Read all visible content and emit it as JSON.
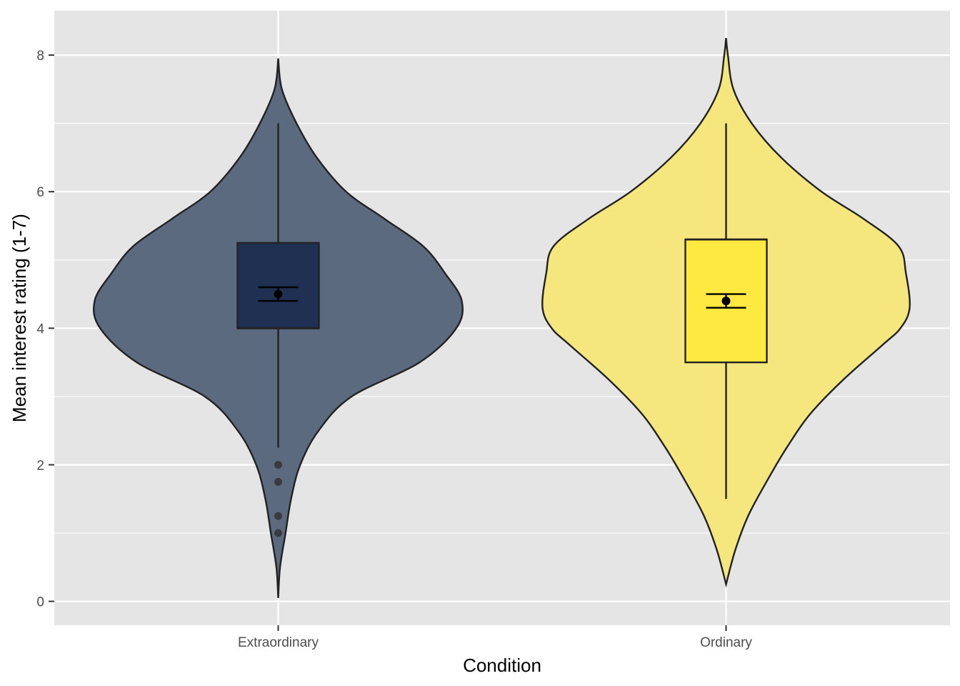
{
  "chart_data": {
    "type": "violin",
    "title": "",
    "xlabel": "Condition",
    "ylabel": "Mean interest rating (1-7)",
    "ylim": [
      -0.35,
      8.65
    ],
    "y_ticks": [
      0,
      2,
      4,
      6,
      8
    ],
    "grid": true,
    "legend": "none",
    "background": "#e5e5e5",
    "categories": [
      "Extraordinary",
      "Ordinary"
    ],
    "groups": [
      {
        "category": "Extraordinary",
        "fill": "#1f3052",
        "violin_fill": "#5c6a80",
        "box_fill": "#1f3052",
        "violin_range": [
          0.05,
          7.95
        ],
        "violin_profile": [
          [
            0.05,
            0.0
          ],
          [
            0.5,
            0.01
          ],
          [
            1.0,
            0.04
          ],
          [
            1.5,
            0.07
          ],
          [
            2.0,
            0.12
          ],
          [
            2.5,
            0.22
          ],
          [
            3.0,
            0.4
          ],
          [
            3.5,
            0.77
          ],
          [
            4.0,
            0.97
          ],
          [
            4.4,
            1.0
          ],
          [
            4.8,
            0.91
          ],
          [
            5.2,
            0.79
          ],
          [
            5.6,
            0.58
          ],
          [
            6.0,
            0.37
          ],
          [
            6.5,
            0.21
          ],
          [
            7.0,
            0.1
          ],
          [
            7.5,
            0.02
          ],
          [
            7.95,
            0.0
          ]
        ],
        "box": {
          "q1": 4.0,
          "median": 4.0,
          "q3": 5.25,
          "whisker_low": 2.25,
          "whisker_high": 7.0
        },
        "outliers": [
          2.0,
          1.75,
          1.25,
          1.0
        ],
        "mean": 4.5,
        "ci": [
          4.4,
          4.6
        ]
      },
      {
        "category": "Ordinary",
        "fill": "#fde725",
        "violin_fill": "#f5e67e",
        "box_fill": "#fde93f",
        "violin_range": [
          0.25,
          8.25
        ],
        "violin_profile": [
          [
            0.25,
            0.0
          ],
          [
            0.75,
            0.05
          ],
          [
            1.25,
            0.12
          ],
          [
            1.75,
            0.22
          ],
          [
            2.25,
            0.33
          ],
          [
            2.75,
            0.46
          ],
          [
            3.25,
            0.64
          ],
          [
            3.75,
            0.85
          ],
          [
            4.0,
            0.95
          ],
          [
            4.3,
            1.0
          ],
          [
            4.8,
            0.98
          ],
          [
            5.2,
            0.94
          ],
          [
            5.6,
            0.75
          ],
          [
            6.0,
            0.52
          ],
          [
            6.5,
            0.3
          ],
          [
            7.0,
            0.14
          ],
          [
            7.5,
            0.04
          ],
          [
            8.0,
            0.01
          ],
          [
            8.25,
            0.0
          ]
        ],
        "box": {
          "q1": 3.5,
          "median": 5.3,
          "q3": 5.3,
          "whisker_low": 1.5,
          "whisker_high": 7.0
        },
        "outliers": [],
        "mean": 4.4,
        "ci": [
          4.3,
          4.5
        ]
      }
    ]
  }
}
